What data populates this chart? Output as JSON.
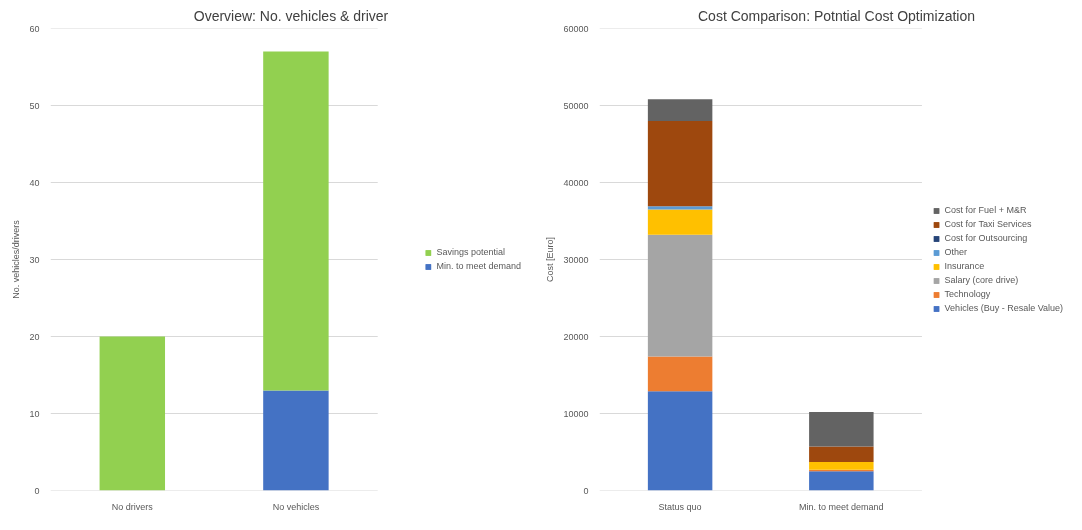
{
  "chart_data": [
    {
      "type": "bar",
      "title": "Overview: No. vehicles & driver",
      "ylabel": "No. vehicles/drivers",
      "categories": [
        "No drivers",
        "No vehicles"
      ],
      "stacked": true,
      "ylim": [
        0,
        60
      ],
      "yticks": [
        0,
        10,
        20,
        30,
        40,
        50,
        60
      ],
      "grid": "y",
      "legend": "right",
      "series": [
        {
          "name": "Min. to meet demand",
          "color": "#4472c4",
          "values": [
            0,
            13
          ]
        },
        {
          "name": "Savings potential",
          "color": "#92d050",
          "values": [
            20,
            44
          ]
        }
      ]
    },
    {
      "type": "bar",
      "title": "Cost Comparison: Potntial Cost Optimization",
      "ylabel": "Cost [Euro]",
      "categories": [
        "Status quo",
        "Min. to meet demand"
      ],
      "stacked": true,
      "ylim": [
        0,
        60000
      ],
      "yticks": [
        0,
        10000,
        20000,
        30000,
        40000,
        50000,
        60000
      ],
      "grid": "y",
      "legend": "right",
      "series": [
        {
          "name": "Vehicles (Buy - Resale Value)",
          "color": "#4472c4",
          "values": [
            12900,
            2500
          ]
        },
        {
          "name": "Technology",
          "color": "#ed7d31",
          "values": [
            4500,
            200
          ]
        },
        {
          "name": "Salary (core drive)",
          "color": "#a5a5a5",
          "values": [
            15800,
            0
          ]
        },
        {
          "name": "Insurance",
          "color": "#ffc000",
          "values": [
            3300,
            1000
          ]
        },
        {
          "name": "Other",
          "color": "#5b9bd5",
          "values": [
            400,
            0
          ]
        },
        {
          "name": "Cost for Outsourcing",
          "color": "#264478",
          "values": [
            0,
            0
          ]
        },
        {
          "name": "Cost for Taxi Services",
          "color": "#9e480e",
          "values": [
            11100,
            2000
          ]
        },
        {
          "name": "Cost for Fuel + M&R",
          "color": "#636363",
          "values": [
            2800,
            4500
          ]
        }
      ]
    }
  ]
}
